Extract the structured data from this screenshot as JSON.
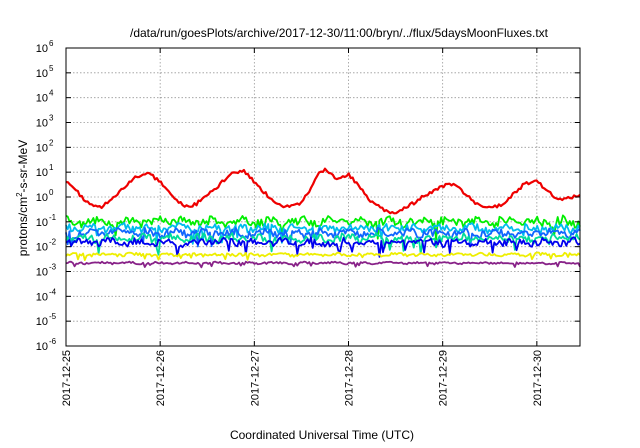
{
  "chart_data": {
    "type": "line",
    "title": "/data/run/goesPlots/archive/2017-12-30/11:00/bryn/../flux/5daysMoonFluxes.txt",
    "xlabel": "Coordinated Universal Time (UTC)",
    "ylabel": "protons/cm²-s-sr-MeV",
    "ylabel_parts": {
      "base": "protons/cm",
      "sup": "2",
      "rest": "-s-sr-MeV"
    },
    "yscale": "log",
    "ylim": [
      1e-06,
      1000000.0
    ],
    "y_tick_exponents": [
      -6,
      -5,
      -4,
      -3,
      -2,
      -1,
      0,
      1,
      2,
      3,
      4,
      5,
      6
    ],
    "y_tick_base": "10",
    "xlim": [
      "2017-12-25T00:00",
      "2017-12-30T11:00"
    ],
    "x_ticks": [
      "2017-12-25",
      "2017-12-26",
      "2017-12-27",
      "2017-12-28",
      "2017-12-29",
      "2017-12-30"
    ],
    "grid": true,
    "series": [
      {
        "color": "#ee0000",
        "x": [
          "2017-12-25T00:00",
          "2017-12-25T03:00",
          "2017-12-25T06:00",
          "2017-12-25T09:00",
          "2017-12-25T12:00",
          "2017-12-25T15:00",
          "2017-12-25T18:00",
          "2017-12-25T21:00",
          "2017-12-26T00:00",
          "2017-12-26T03:00",
          "2017-12-26T06:00",
          "2017-12-26T09:00",
          "2017-12-26T12:00",
          "2017-12-26T15:00",
          "2017-12-26T18:00",
          "2017-12-26T21:00",
          "2017-12-27T00:00",
          "2017-12-27T03:00",
          "2017-12-27T06:00",
          "2017-12-27T09:00",
          "2017-12-27T12:00",
          "2017-12-27T14:00",
          "2017-12-27T16:00",
          "2017-12-27T18:00",
          "2017-12-27T21:00",
          "2017-12-28T00:00",
          "2017-12-28T03:00",
          "2017-12-28T06:00",
          "2017-12-28T09:00",
          "2017-12-28T12:00",
          "2017-12-28T15:00",
          "2017-12-28T18:00",
          "2017-12-28T21:00",
          "2017-12-29T00:00",
          "2017-12-29T03:00",
          "2017-12-29T06:00",
          "2017-12-29T09:00",
          "2017-12-29T12:00",
          "2017-12-29T15:00",
          "2017-12-29T18:00",
          "2017-12-29T21:00",
          "2017-12-30T00:00",
          "2017-12-30T03:00",
          "2017-12-30T06:00",
          "2017-12-30T09:00",
          "2017-12-30T11:00"
        ],
        "y": [
          4.5,
          1.5,
          0.5,
          0.4,
          1.0,
          2.5,
          7.0,
          9.0,
          4.0,
          1.2,
          0.4,
          0.5,
          1.2,
          3.0,
          8.5,
          12.0,
          4.0,
          1.3,
          0.5,
          0.4,
          0.6,
          1.6,
          7.5,
          12.0,
          5.0,
          8.0,
          2.5,
          0.6,
          0.3,
          0.2,
          0.4,
          0.8,
          1.6,
          2.8,
          3.5,
          1.2,
          0.5,
          0.35,
          0.5,
          1.3,
          3.5,
          4.5,
          1.5,
          0.8,
          1.0,
          1.2
        ]
      },
      {
        "color": "#00ee00",
        "base": 0.1,
        "amp": 0.35,
        "phase": 1
      },
      {
        "color": "#00bbee",
        "base": 0.055,
        "amp": 0.3,
        "phase": 2
      },
      {
        "color": "#1166ff",
        "base": 0.035,
        "amp": 0.3,
        "phase": 3
      },
      {
        "color": "#00dd99",
        "base": 0.022,
        "amp": 0.3,
        "phase": 4
      },
      {
        "color": "#0000ee",
        "base": 0.015,
        "amp": 0.28,
        "phase": 5
      },
      {
        "color": "#eeee00",
        "base": 0.0048,
        "amp": 0.12,
        "phase": 6
      },
      {
        "color": "#882288",
        "base": 0.0022,
        "amp": 0.08,
        "phase": 7
      }
    ]
  }
}
